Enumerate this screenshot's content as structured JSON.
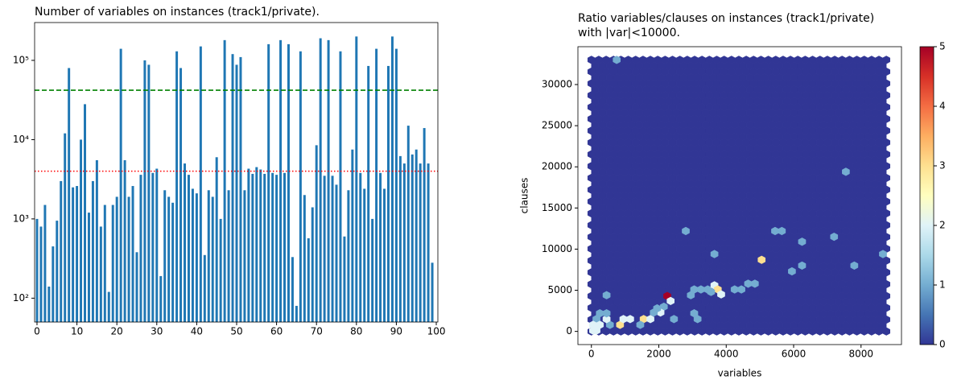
{
  "chart_data": [
    {
      "type": "bar",
      "title": "Number of variables on instances (track1/private).",
      "x": [
        0,
        1,
        2,
        3,
        4,
        5,
        6,
        7,
        8,
        9,
        10,
        11,
        12,
        13,
        14,
        15,
        16,
        17,
        18,
        19,
        20,
        21,
        22,
        23,
        24,
        25,
        26,
        27,
        28,
        29,
        30,
        31,
        32,
        33,
        34,
        35,
        36,
        37,
        38,
        39,
        40,
        41,
        42,
        43,
        44,
        45,
        46,
        47,
        48,
        49,
        50,
        51,
        52,
        53,
        54,
        55,
        56,
        57,
        58,
        59,
        60,
        61,
        62,
        63,
        64,
        65,
        66,
        67,
        68,
        69,
        70,
        71,
        72,
        73,
        74,
        75,
        76,
        77,
        78,
        79,
        80,
        81,
        82,
        83,
        84,
        85,
        86,
        87,
        88,
        89,
        90,
        91,
        92,
        93,
        94,
        95,
        96,
        97,
        98,
        99
      ],
      "values": [
        1000,
        800,
        1500,
        140,
        450,
        950,
        3000,
        12000,
        80000,
        2500,
        2600,
        10000,
        28000,
        1200,
        3000,
        5500,
        800,
        1500,
        120,
        1500,
        1900,
        140000,
        5500,
        1900,
        2600,
        380,
        3600,
        100000,
        88000,
        3800,
        4300,
        190,
        2300,
        1900,
        1600,
        130000,
        80000,
        5000,
        3600,
        2400,
        2100,
        150000,
        350,
        2300,
        1900,
        6000,
        1000,
        180000,
        2300,
        120000,
        88000,
        110000,
        2300,
        4300,
        3700,
        4500,
        4200,
        3700,
        160000,
        3800,
        3600,
        180000,
        3800,
        160000,
        330,
        80,
        130000,
        2000,
        570,
        1400,
        8500,
        190000,
        3500,
        180000,
        3500,
        2700,
        130000,
        600,
        2300,
        7500,
        200000,
        3800,
        2400,
        85000,
        1000,
        140000,
        3800,
        2400,
        85000,
        200000,
        140000,
        6200,
        5000,
        15000,
        6500,
        7500,
        5000,
        14000,
        5000,
        280
      ],
      "color": "#1f77b4",
      "log_y": true,
      "xlim": [
        -0.6,
        100.4
      ],
      "xticks": [
        0,
        10,
        20,
        30,
        40,
        50,
        60,
        70,
        80,
        90,
        100
      ],
      "ylim": [
        50,
        300000
      ],
      "yticks": [
        {
          "value": 100,
          "label": "10²"
        },
        {
          "value": 1000,
          "label": "10³"
        },
        {
          "value": 10000,
          "label": "10⁴"
        },
        {
          "value": 100000,
          "label": "10⁵"
        }
      ],
      "hlines": [
        {
          "value": 42000,
          "color": "green",
          "style": "dashed"
        },
        {
          "value": 4000,
          "color": "red",
          "style": "dotted"
        }
      ]
    },
    {
      "type": "hexbin",
      "title": [
        "Ratio variables/clauses on instances (track1/private)",
        "with |var|<10000."
      ],
      "x_label": "variables",
      "y_label": "clauses",
      "gridsize": 40,
      "extent": [
        0,
        8750,
        0,
        33000
      ],
      "x": [
        750,
        7550,
        2800,
        5450,
        5650,
        6250,
        7200,
        3650,
        5050,
        6250,
        7800,
        8650,
        5950,
        3050,
        3250,
        3450,
        3650,
        3750,
        3550,
        3850,
        2950,
        4250,
        4450,
        4650,
        4850,
        2250,
        2350,
        3050,
        3150,
        2150,
        2050,
        1850,
        1950,
        1550,
        1450,
        1750,
        1150,
        850,
        950,
        550,
        450,
        250,
        450,
        150,
        50,
        250,
        150,
        50,
        450,
        2450
      ],
      "y": [
        33000,
        19400,
        12200,
        12200,
        12200,
        10900,
        11500,
        9400,
        8700,
        8000,
        8000,
        9400,
        7300,
        5100,
        5100,
        5100,
        5600,
        5100,
        4800,
        4500,
        4400,
        5100,
        5100,
        5800,
        5800,
        4300,
        3700,
        2200,
        1500,
        3000,
        2300,
        2300,
        2800,
        1500,
        800,
        1500,
        1500,
        800,
        1500,
        800,
        1500,
        2200,
        2200,
        1500,
        800,
        800,
        100,
        100,
        4400,
        1500
      ],
      "counts": [
        1,
        1,
        1,
        1,
        1,
        1,
        1,
        1,
        3,
        1,
        1,
        1,
        1,
        1,
        1,
        1,
        2,
        3,
        1,
        2,
        1,
        1,
        1,
        1,
        1,
        5,
        2,
        1,
        1,
        1,
        2,
        1,
        1,
        3,
        1,
        2,
        2,
        3,
        2,
        1,
        2,
        1,
        1,
        1,
        2,
        2,
        2,
        2,
        1,
        1
      ],
      "colormap": [
        "#313695",
        "#4575b4",
        "#74add1",
        "#abd9e9",
        "#e0f3f8",
        "#ffffbf",
        "#fee090",
        "#fdae61",
        "#f46d43",
        "#d73027",
        "#a50026"
      ],
      "clim": [
        0,
        5
      ],
      "cticks": [
        0,
        1,
        2,
        3,
        4,
        5
      ],
      "xlim": [
        -400,
        9200
      ],
      "xticks": [
        0,
        2000,
        4000,
        6000,
        8000
      ],
      "ylim": [
        -1600,
        34600
      ],
      "yticks": [
        0,
        5000,
        10000,
        15000,
        20000,
        25000,
        30000
      ]
    }
  ]
}
